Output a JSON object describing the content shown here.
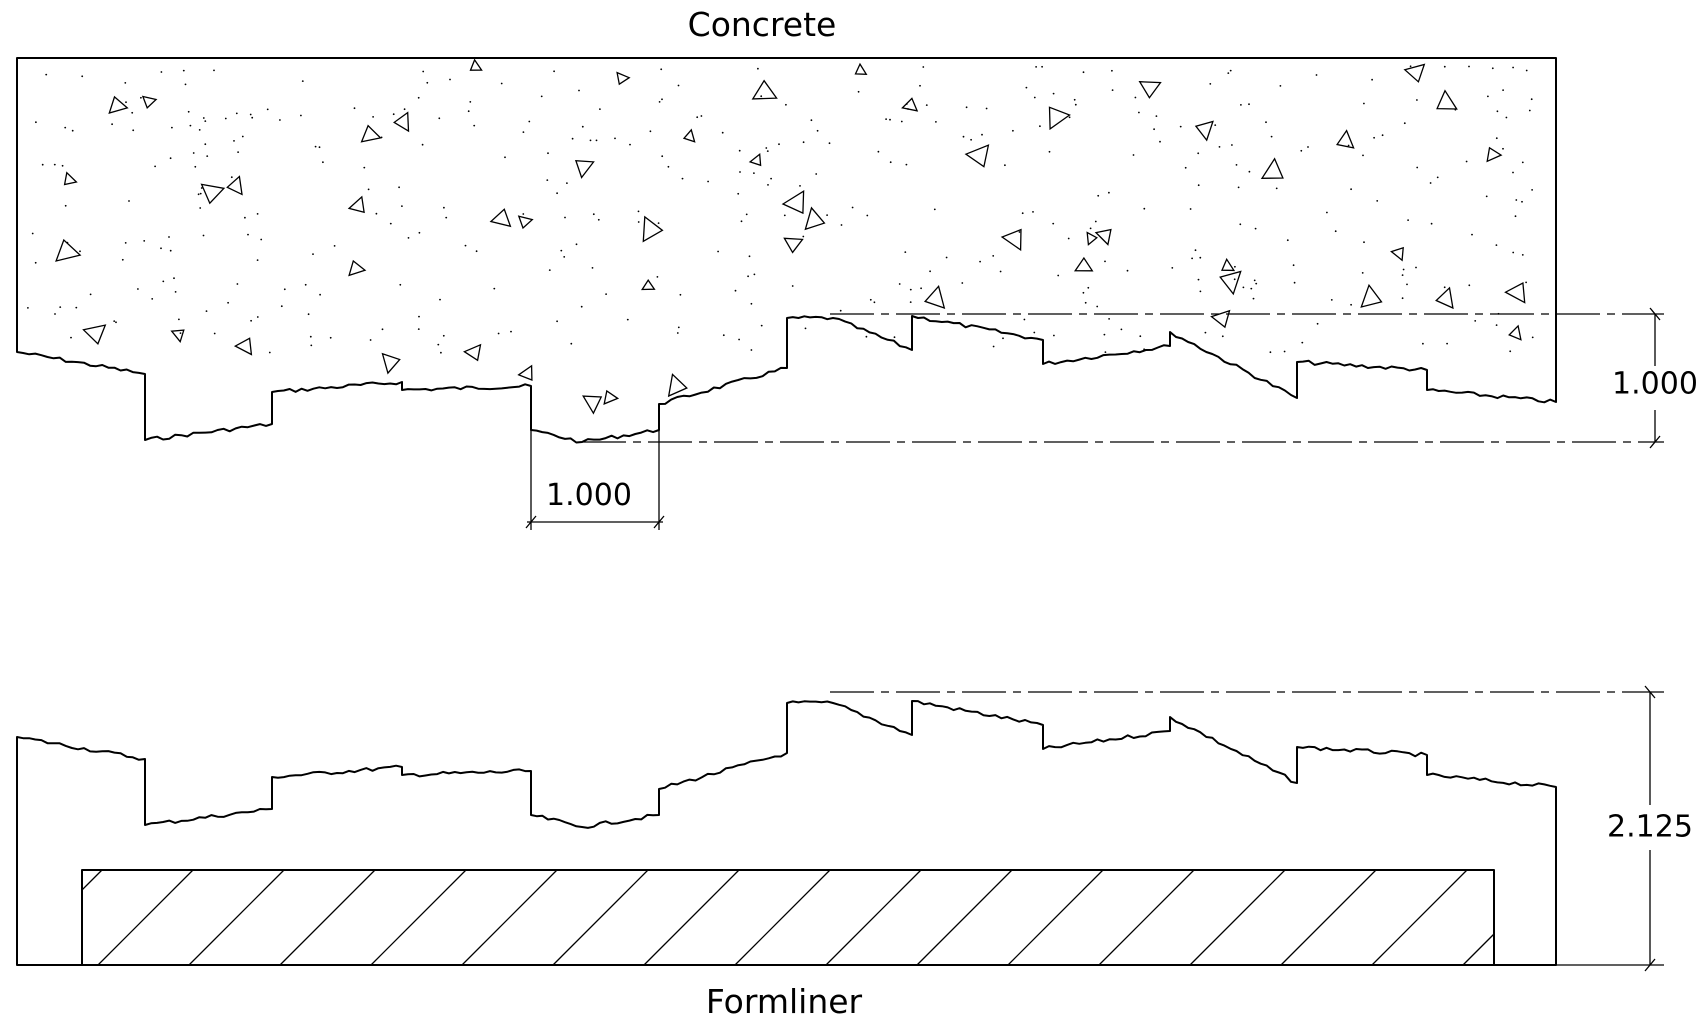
{
  "concrete_label": "Concrete",
  "formliner_label": "Formliner",
  "dimensions": {
    "relief_depth": "1.000",
    "module_width": "1.000",
    "formliner_thickness": "2.125"
  }
}
